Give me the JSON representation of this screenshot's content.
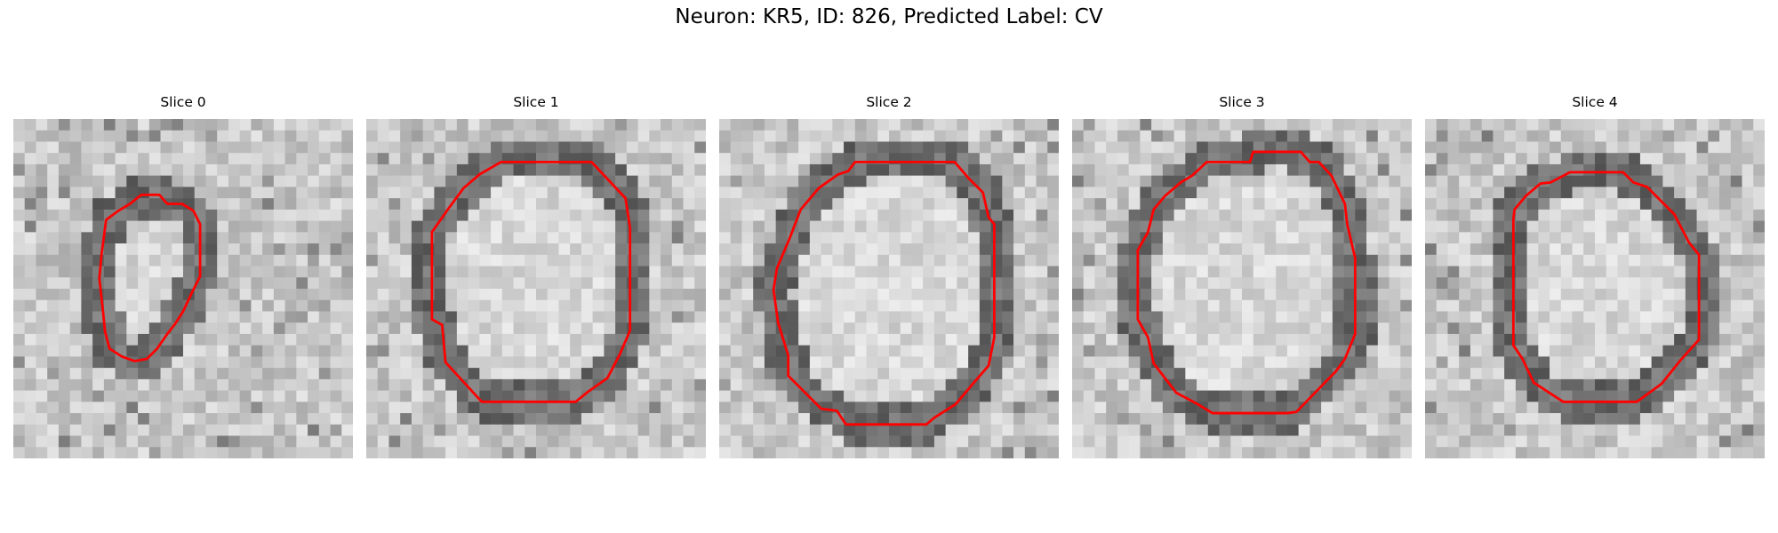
{
  "figure": {
    "title": "Neuron: KR5, ID: 826, Predicted Label: CV"
  },
  "panels": [
    {
      "label": "Slice 0",
      "overlay_color": "#ff0000"
    },
    {
      "label": "Slice 1",
      "overlay_color": "#ff0000"
    },
    {
      "label": "Slice 2",
      "overlay_color": "#ff0000"
    },
    {
      "label": "Slice 3",
      "overlay_color": "#ff0000"
    },
    {
      "label": "Slice 4",
      "overlay_color": "#ff0000"
    }
  ]
}
